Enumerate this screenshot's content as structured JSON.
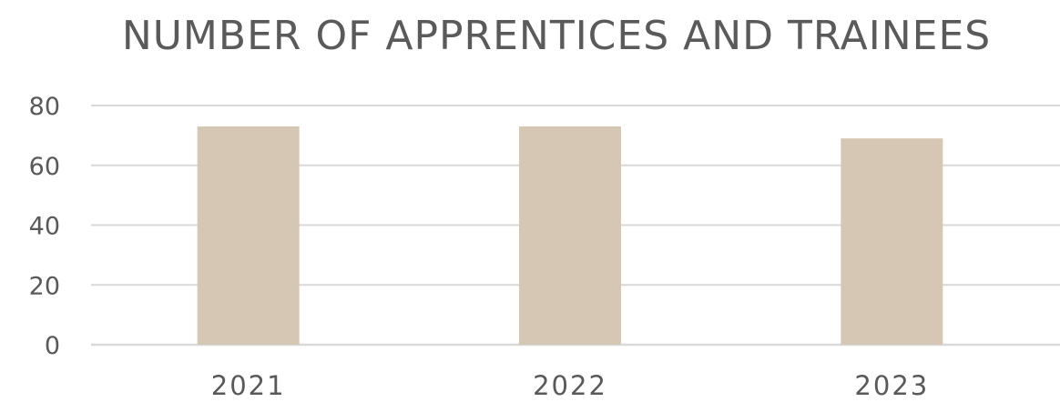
{
  "chart_data": {
    "type": "bar",
    "title": "NUMBER OF APPRENTICES AND TRAINEES",
    "categories": [
      "2021",
      "2022",
      "2023"
    ],
    "values": [
      73,
      73,
      69
    ],
    "xlabel": "",
    "ylabel": "",
    "ylim": [
      0,
      80
    ],
    "yticks": [
      0,
      20,
      40,
      60,
      80
    ],
    "grid": true,
    "legend": "none",
    "bar_color": "#d5c7b3",
    "grid_color": "#d9d9d9",
    "text_color": "#595959"
  }
}
